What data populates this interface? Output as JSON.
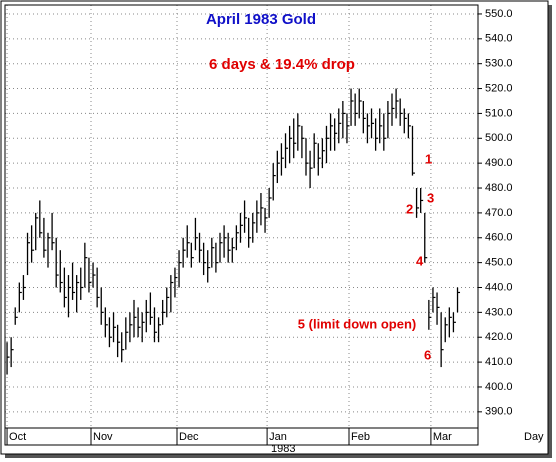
{
  "chart_data": {
    "type": "ohlc",
    "title": "April 1983 Gold",
    "subtitle": "6 days & 19.4% drop",
    "x_label": "Day",
    "year_label": "1983",
    "annotations": [
      "1",
      "2",
      "3",
      "4",
      "5 (limit down open)",
      "6"
    ],
    "color": "#000000",
    "grid": true,
    "xlim": [
      -0.5,
      115
    ],
    "xticks": [
      {
        "value": 0,
        "label": "Oct"
      },
      {
        "value": 20.5,
        "label": "Nov"
      },
      {
        "value": 41.5,
        "label": "Dec"
      },
      {
        "value": 63.5,
        "label": "Jan"
      },
      {
        "value": 83.5,
        "label": "Feb"
      },
      {
        "value": 103.5,
        "label": "Mar"
      }
    ],
    "ylim": [
      383.5,
      553.6
    ],
    "yticks": [
      {
        "value": 390,
        "label": "390.0"
      },
      {
        "value": 400,
        "label": "400.0"
      },
      {
        "value": 410,
        "label": "410.0"
      },
      {
        "value": 420,
        "label": "420.0"
      },
      {
        "value": 430,
        "label": "430.0"
      },
      {
        "value": 440,
        "label": "440.0"
      },
      {
        "value": 450,
        "label": "450.0"
      },
      {
        "value": 460,
        "label": "460.0"
      },
      {
        "value": 470,
        "label": "470.0"
      },
      {
        "value": 480,
        "label": "480.0"
      },
      {
        "value": 490,
        "label": "490.0"
      },
      {
        "value": 500,
        "label": "500.0"
      },
      {
        "value": 510,
        "label": "510.0"
      },
      {
        "value": 520,
        "label": "520.0"
      },
      {
        "value": 530,
        "label": "530.0"
      },
      {
        "value": 540,
        "label": "540.0"
      },
      {
        "value": 550,
        "label": "550.0"
      }
    ],
    "high": [
      418,
      420,
      432,
      442,
      445,
      462,
      465,
      470,
      475,
      468,
      462,
      470,
      460,
      455,
      448,
      445,
      450,
      445,
      448,
      458,
      452,
      450,
      448,
      440,
      432,
      428,
      430,
      425,
      422,
      428,
      430,
      435,
      432,
      430,
      435,
      438,
      432,
      428,
      435,
      440,
      445,
      448,
      455,
      460,
      465,
      458,
      468,
      462,
      458,
      455,
      460,
      458,
      462,
      465,
      462,
      460,
      465,
      470,
      475,
      468,
      470,
      475,
      478,
      472,
      480,
      490,
      495,
      498,
      502,
      505,
      508,
      510,
      505,
      500,
      495,
      502,
      498,
      500,
      505,
      510,
      508,
      512,
      515,
      510,
      520,
      518,
      520,
      515,
      510,
      512,
      508,
      512,
      510,
      515,
      518,
      520,
      516,
      512,
      510,
      505,
      480,
      480,
      470,
      435,
      440,
      438,
      430,
      428,
      432,
      430,
      440
    ],
    "low": [
      405,
      408,
      425,
      430,
      435,
      445,
      450,
      455,
      460,
      452,
      448,
      455,
      440,
      438,
      432,
      428,
      435,
      430,
      435,
      440,
      438,
      440,
      432,
      425,
      420,
      416,
      418,
      412,
      410,
      415,
      418,
      420,
      420,
      418,
      422,
      425,
      418,
      418,
      425,
      428,
      430,
      436,
      440,
      448,
      452,
      448,
      455,
      450,
      445,
      442,
      448,
      446,
      450,
      452,
      450,
      450,
      455,
      458,
      462,
      456,
      458,
      462,
      465,
      462,
      468,
      475,
      482,
      485,
      488,
      490,
      492,
      495,
      492,
      485,
      480,
      488,
      485,
      488,
      490,
      495,
      495,
      498,
      500,
      498,
      505,
      505,
      508,
      502,
      498,
      500,
      495,
      498,
      495,
      500,
      505,
      508,
      505,
      502,
      500,
      485,
      468,
      470,
      450,
      423,
      430,
      425,
      408,
      418,
      420,
      422,
      430
    ],
    "close": [
      412,
      415,
      428,
      438,
      440,
      458,
      455,
      468,
      462,
      455,
      460,
      458,
      445,
      442,
      436,
      440,
      438,
      442,
      440,
      452,
      442,
      445,
      436,
      430,
      425,
      420,
      424,
      418,
      415,
      422,
      425,
      428,
      424,
      426,
      430,
      428,
      422,
      425,
      430,
      436,
      442,
      444,
      450,
      455,
      458,
      452,
      460,
      455,
      450,
      448,
      456,
      450,
      458,
      460,
      455,
      456,
      462,
      465,
      468,
      460,
      466,
      470,
      472,
      468,
      476,
      485,
      490,
      492,
      496,
      500,
      498,
      505,
      500,
      490,
      488,
      498,
      492,
      495,
      500,
      505,
      502,
      506,
      510,
      505,
      515,
      510,
      515,
      508,
      505,
      506,
      500,
      505,
      500,
      510,
      512,
      515,
      510,
      508,
      505,
      486,
      472,
      475,
      452,
      428,
      436,
      432,
      415,
      425,
      428,
      426,
      438
    ]
  }
}
